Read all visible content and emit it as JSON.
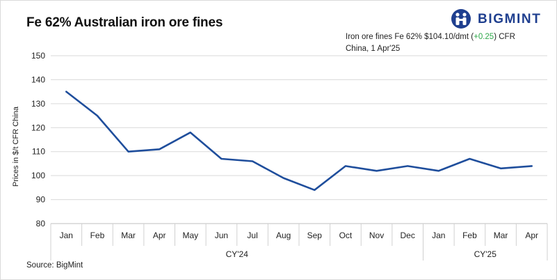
{
  "title": "Fe 62% Australian iron ore fines",
  "brand": {
    "name": "BIGMINT",
    "color": "#1f3f8f"
  },
  "annotation": {
    "prefix": "Iron ore fines Fe 62% $104.10/dmt (",
    "change": "+0.25",
    "suffix": ") CFR China, 1 Apr'25",
    "change_color": "#2ea84a"
  },
  "source": "Source: BigMint",
  "chart_data": {
    "type": "line",
    "title": "Fe 62% Australian iron ore fines",
    "ylabel": "Prices in $/t CFR China",
    "xlabel": "",
    "categories": [
      "Jan",
      "Feb",
      "Mar",
      "Apr",
      "May",
      "Jun",
      "Jul",
      "Aug",
      "Sep",
      "Oct",
      "Nov",
      "Dec",
      "Jan",
      "Feb",
      "Mar",
      "Apr"
    ],
    "groups": [
      {
        "label": "CY'24",
        "count": 12
      },
      {
        "label": "CY'25",
        "count": 4
      }
    ],
    "series": [
      {
        "color": "#1f4e9c",
        "values": [
          135,
          125,
          110,
          111,
          118,
          107,
          106,
          99,
          94,
          104,
          102,
          104,
          102,
          107,
          103,
          104
        ]
      }
    ],
    "ylim": [
      80,
      150
    ],
    "yticks": [
      80,
      90,
      100,
      110,
      120,
      130,
      140,
      150
    ],
    "grid": true,
    "legend": "none"
  }
}
